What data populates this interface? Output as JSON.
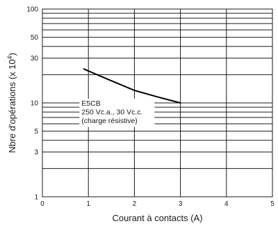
{
  "chart_data": {
    "type": "line",
    "xlabel": "Courant à contacts (A)",
    "ylabel": "Nbre d'opérations (x 10",
    "ylabel_exponent": "4",
    "ylabel_close": ")",
    "xlim": [
      0,
      5
    ],
    "ylim": [
      1,
      100
    ],
    "y_scale": "log",
    "grid": true,
    "x_ticks": [
      {
        "value": 0,
        "label": "0"
      },
      {
        "value": 1,
        "label": "1"
      },
      {
        "value": 2,
        "label": "2"
      },
      {
        "value": 3,
        "label": "3"
      },
      {
        "value": 4,
        "label": "4"
      },
      {
        "value": 5,
        "label": "5"
      }
    ],
    "y_ticks": [
      {
        "value": 1,
        "label": "1"
      },
      {
        "value": 3,
        "label": "3"
      },
      {
        "value": 5,
        "label": "5"
      },
      {
        "value": 10,
        "label": "10"
      },
      {
        "value": 30,
        "label": "30"
      },
      {
        "value": 50,
        "label": "50"
      },
      {
        "value": 100,
        "label": "100"
      }
    ],
    "y_gridlines": [
      1,
      2,
      3,
      4,
      5,
      6,
      7,
      8,
      9,
      10,
      20,
      30,
      40,
      50,
      60,
      70,
      80,
      90,
      100
    ],
    "series": [
      {
        "x": [
          0.9,
          1.5,
          2.0,
          2.5,
          3.0
        ],
        "y": [
          23,
          17.2,
          13.6,
          11.6,
          10
        ]
      }
    ],
    "annotation": {
      "lines": [
        "E5CB",
        "250 Vc.a., 30 Vc.c.",
        "(charge résistive)"
      ],
      "anchor_x": 0.82,
      "anchor_y": 10
    },
    "colors": {
      "axis": "#1a1a1a",
      "grid": "#1a1a1a",
      "line": "#000000"
    }
  }
}
